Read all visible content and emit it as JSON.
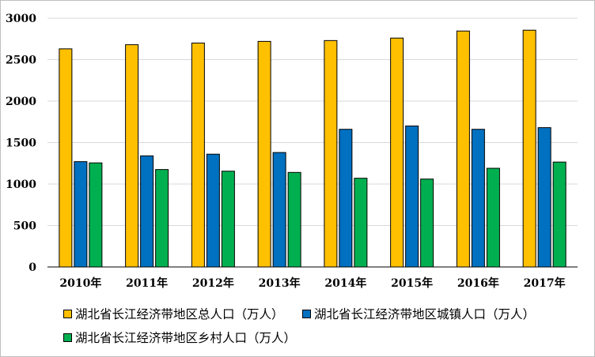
{
  "colors": {
    "total": "#FFC000",
    "urban": "#0070C0",
    "rural": "#00B050",
    "grid": "#d9d9d9",
    "axis": "#000000",
    "outline": "#000000"
  },
  "chart_data": {
    "type": "bar",
    "title": "",
    "xlabel": "",
    "ylabel": "",
    "ylim": [
      0,
      3000
    ],
    "yticks": [
      0,
      500,
      1000,
      1500,
      2000,
      2500,
      3000
    ],
    "grid": true,
    "legend_position": "bottom",
    "categories": [
      "2010年",
      "2011年",
      "2012年",
      "2013年",
      "2014年",
      "2015年",
      "2016年",
      "2017年"
    ],
    "series": [
      {
        "name": "湖北省长江经济带地区总人口（万人）",
        "color": "#FFC000",
        "values": [
          2630,
          2680,
          2700,
          2720,
          2730,
          2760,
          2845,
          2855
        ]
      },
      {
        "name": "湖北省长江经济带地区城镇人口（万人）",
        "color": "#0070C0",
        "values": [
          1270,
          1340,
          1360,
          1380,
          1660,
          1700,
          1660,
          1680
        ]
      },
      {
        "name": "湖北省长江经济带地区乡村人口（万人）",
        "color": "#00B050",
        "values": [
          1255,
          1175,
          1155,
          1140,
          1070,
          1060,
          1190,
          1265
        ]
      }
    ]
  }
}
